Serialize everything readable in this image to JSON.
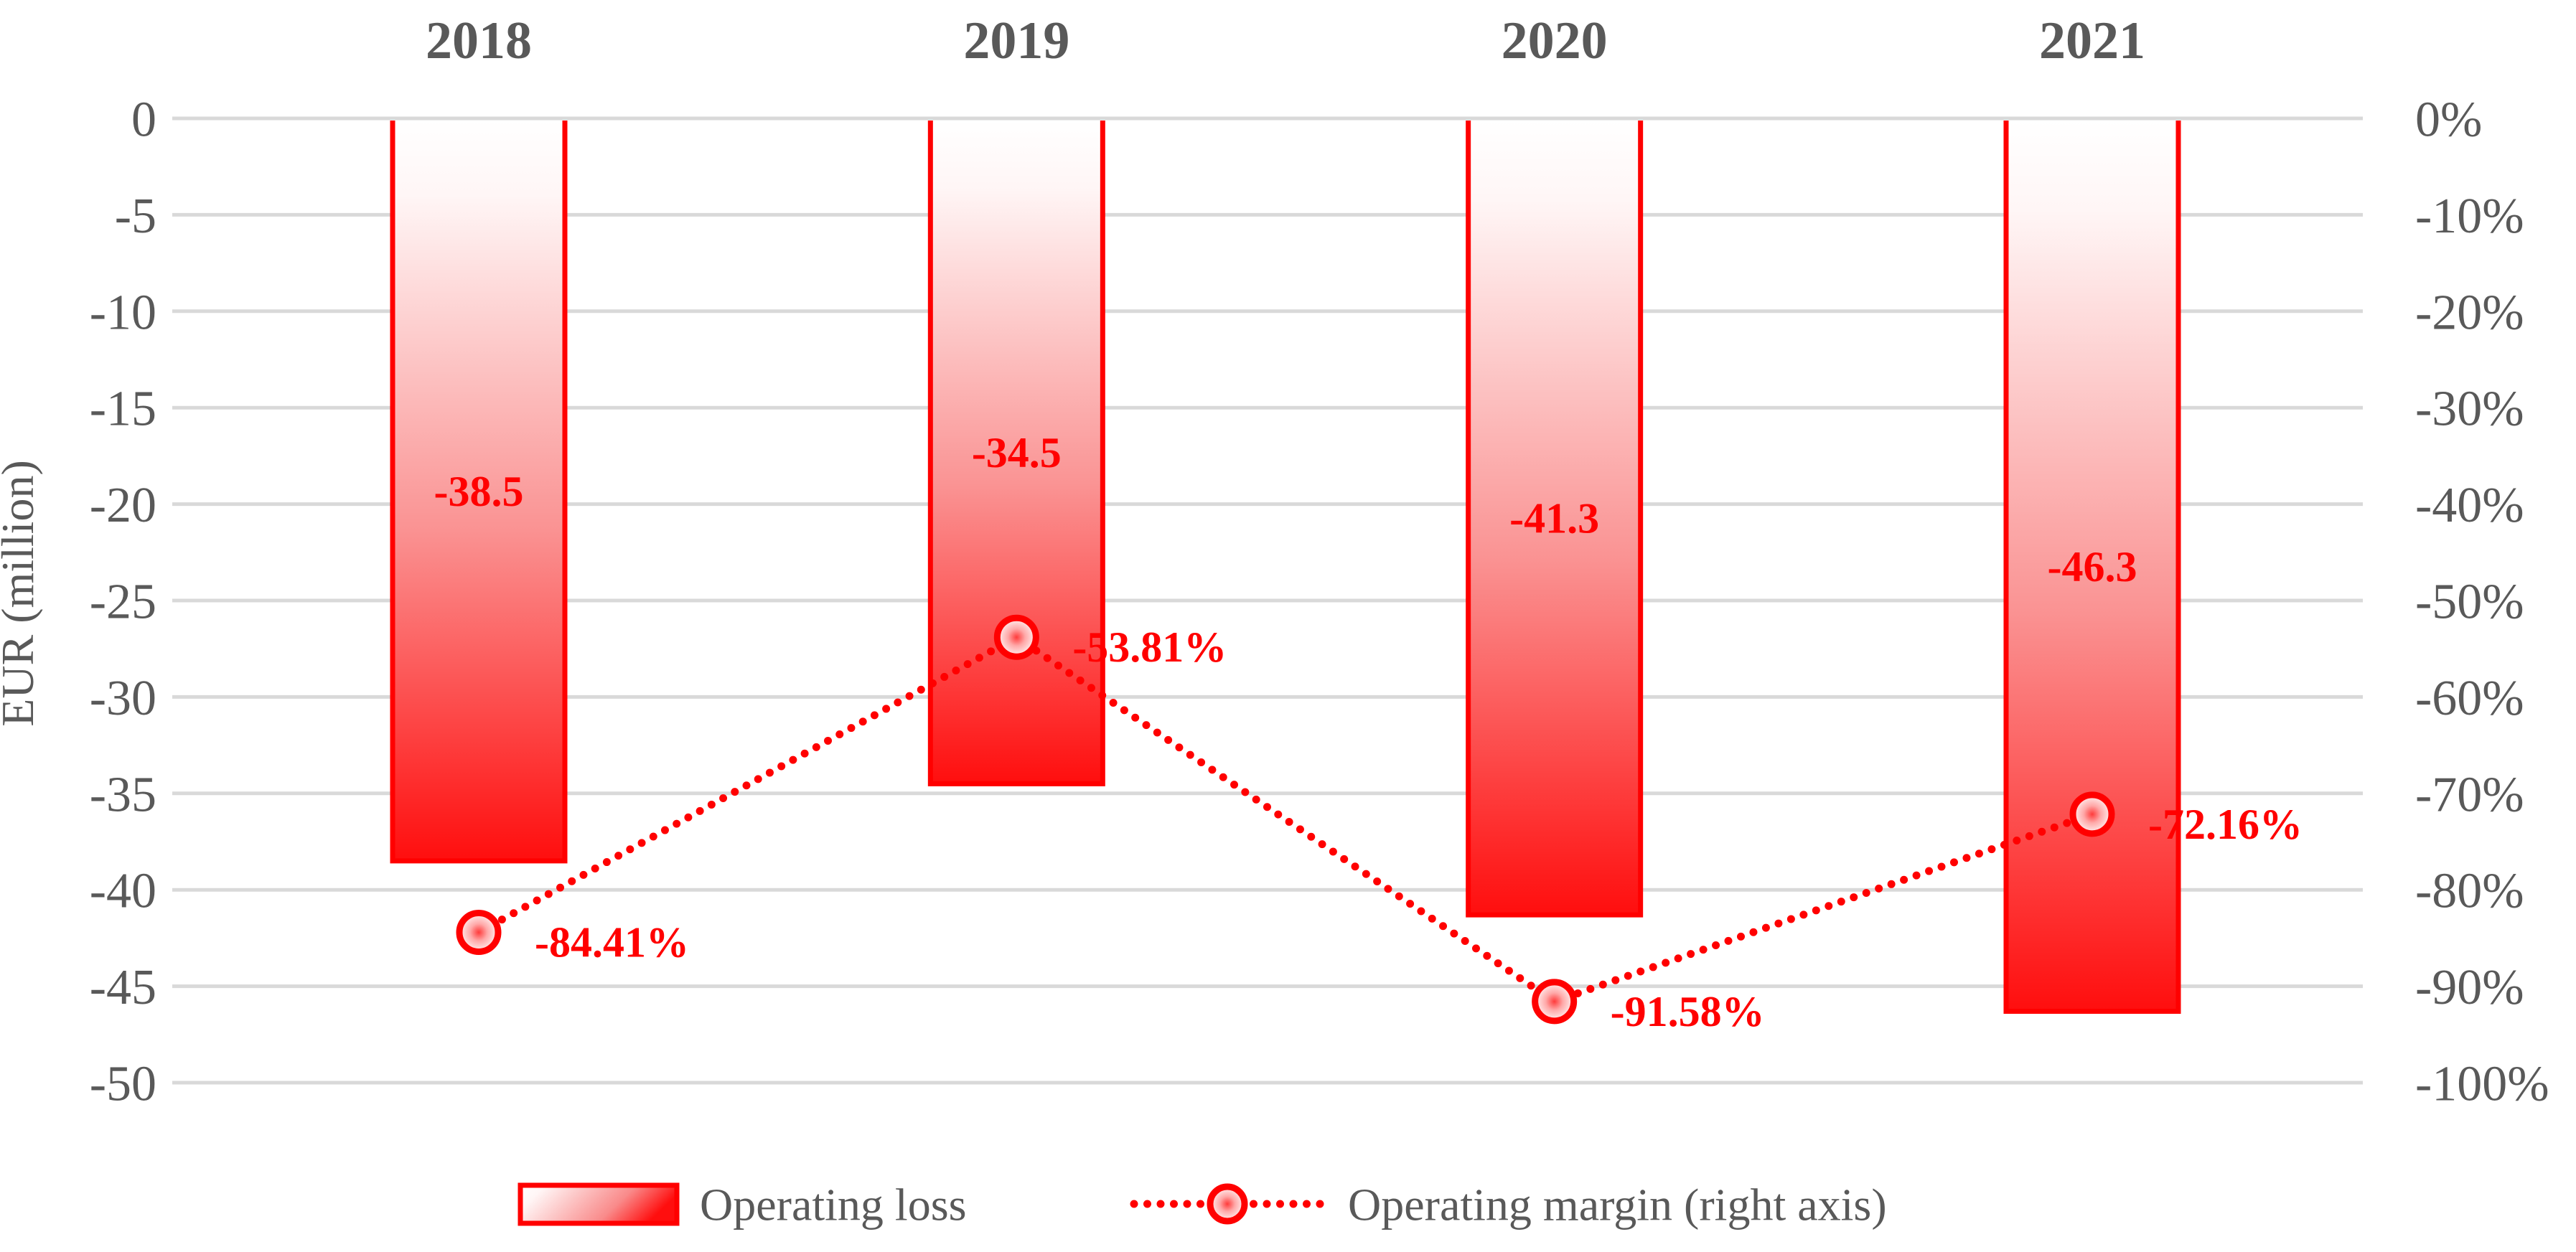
{
  "chart_data": {
    "type": "bar-line-combo",
    "categories": [
      "2018",
      "2019",
      "2020",
      "2021"
    ],
    "series": [
      {
        "name": "Operating loss",
        "type": "bar",
        "axis": "left",
        "values": [
          -38.5,
          -34.5,
          -41.3,
          -46.3
        ],
        "data_labels": [
          "-38.5",
          "-34.5",
          "-41.3",
          "-46.3"
        ]
      },
      {
        "name": "Operating margin (right axis)",
        "type": "line",
        "line_style": "dotted",
        "marker": "circle",
        "axis": "right",
        "values": [
          -84.41,
          -53.81,
          -91.58,
          -72.16
        ],
        "data_labels": [
          "-84.41%",
          "-53.81%",
          "-91.58%",
          "-72.16%"
        ]
      }
    ],
    "left_axis": {
      "label": "EUR (million)",
      "max": 0,
      "min": -50,
      "step": -5,
      "ticks": [
        "0",
        "-5",
        "-10",
        "-15",
        "-20",
        "-25",
        "-30",
        "-35",
        "-40",
        "-45",
        "-50"
      ]
    },
    "right_axis": {
      "max": 0,
      "min": -100,
      "step": -10,
      "ticks": [
        "0%",
        "-10%",
        "-20%",
        "-30%",
        "-40%",
        "-50%",
        "-60%",
        "-70%",
        "-80%",
        "-90%",
        "-100%"
      ]
    },
    "grid": true,
    "legend_position": "bottom",
    "legend": [
      {
        "label": "Operating loss",
        "swatch": "gradient-bar"
      },
      {
        "label": "Operating margin (right axis)",
        "swatch": "dotted-line-circle-marker"
      }
    ],
    "colors": {
      "accent_red": "#FF0000",
      "axis_text": "#595959",
      "gridline": "#D9D9D9",
      "bar_gradient_top": "#FFFFFF",
      "bar_gradient_mid": "#FA9393",
      "bar_gradient_bottom": "#FF0000"
    }
  }
}
